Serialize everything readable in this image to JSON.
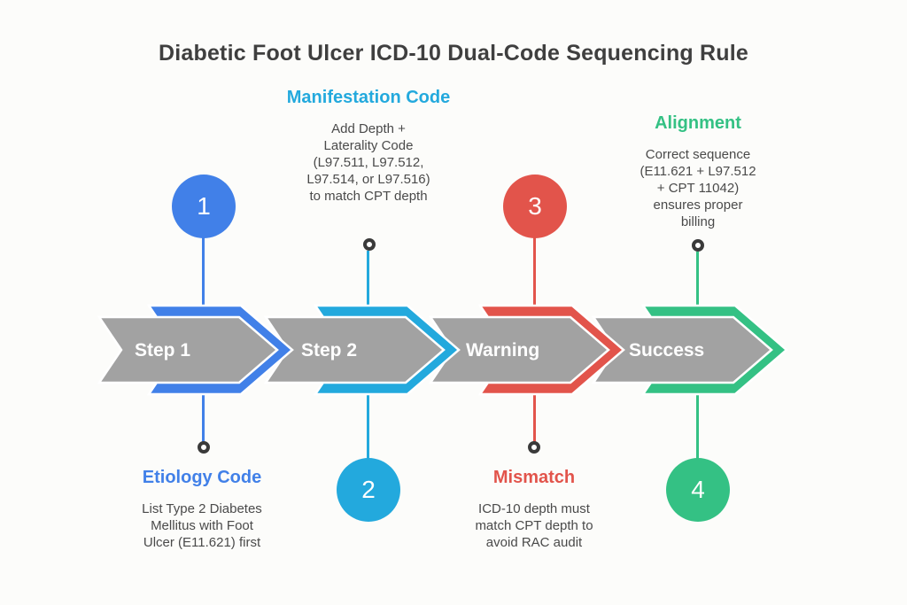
{
  "title": "Diabetic Foot Ulcer ICD-10 Dual-Code Sequencing Rule",
  "colors": {
    "band_gray": "#A2A2A2",
    "band_label_text": "#FFFFFF",
    "title_text": "#3F3F3F",
    "body_text": "#4A4A4A",
    "endpoint_ring": "#3A3A3A",
    "background": "#FCFCFA"
  },
  "band": {
    "steps": [
      {
        "label": "Step 1",
        "color": "#4180E8"
      },
      {
        "label": "Step 2",
        "color": "#23A9DD"
      },
      {
        "label": "Warning",
        "color": "#E2544B"
      },
      {
        "label": "Success",
        "color": "#34C184"
      }
    ]
  },
  "units": [
    {
      "index": "1",
      "accent": "#4180E8",
      "band_label": "Step 1",
      "callout": {
        "heading": "Etiology Code",
        "lines": [
          "List Type 2 Diabetes",
          "Mellitus with Foot",
          "Ulcer (E11.621) first"
        ]
      }
    },
    {
      "index": "2",
      "accent": "#23A9DD",
      "band_label": "Step 2",
      "callout": {
        "heading": "Manifestation Code",
        "lines": [
          "Add Depth +",
          "Laterality Code",
          "(L97.511, L97.512,",
          "L97.514, or L97.516)",
          "to match CPT depth"
        ]
      }
    },
    {
      "index": "3",
      "accent": "#E2544B",
      "band_label": "Warning",
      "callout": {
        "heading": "Mismatch",
        "lines": [
          "ICD-10 depth must",
          "match CPT depth to",
          "avoid RAC audit"
        ]
      }
    },
    {
      "index": "4",
      "accent": "#34C184",
      "band_label": "Success",
      "callout": {
        "heading": "Alignment",
        "lines": [
          "Correct sequence",
          "(E11.621 + L97.512",
          "+ CPT 11042)",
          "ensures proper",
          "billing"
        ]
      }
    }
  ]
}
